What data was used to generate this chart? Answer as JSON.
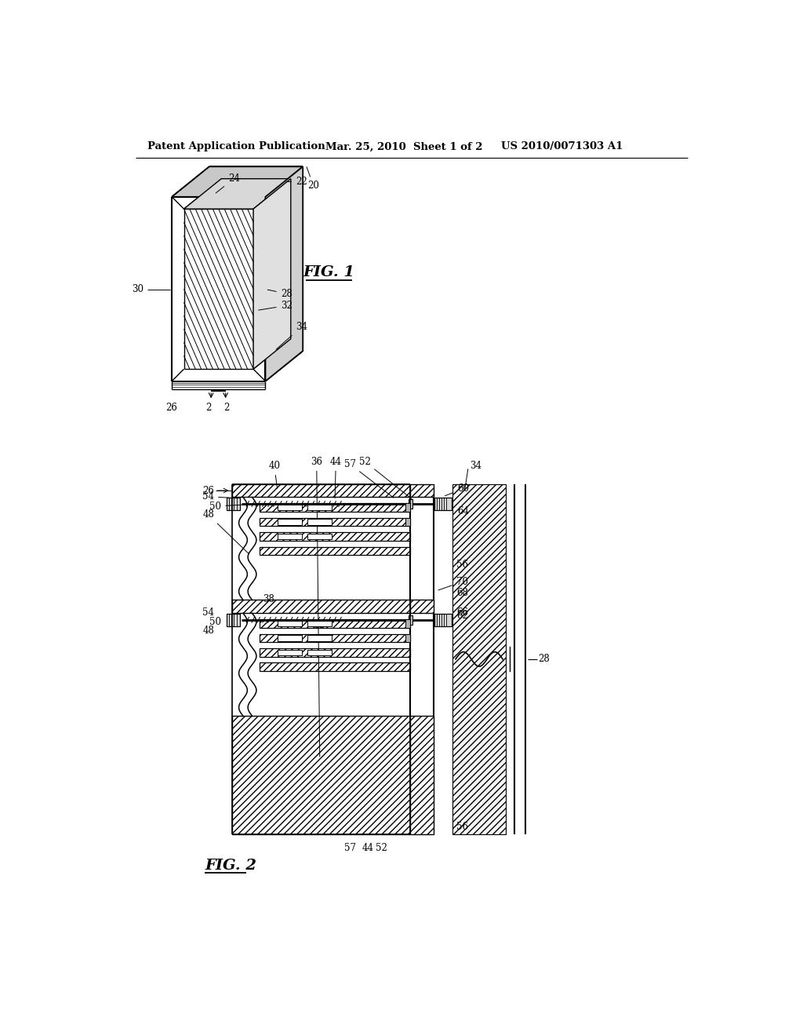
{
  "background_color": "#ffffff",
  "header_left": "Patent Application Publication",
  "header_mid": "Mar. 25, 2010  Sheet 1 of 2",
  "header_right": "US 2010/0071303 A1",
  "line_color": "#000000",
  "lw": 1.2,
  "font_size_label": 8.5,
  "font_size_header": 9.5,
  "fig1_title": "FIG. 1",
  "fig2_title": "FIG. 2"
}
